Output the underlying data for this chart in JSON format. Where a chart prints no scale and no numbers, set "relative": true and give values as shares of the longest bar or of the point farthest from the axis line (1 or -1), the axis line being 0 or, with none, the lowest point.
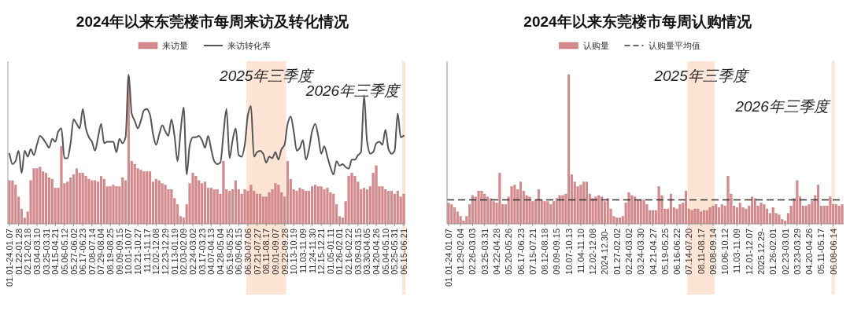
{
  "chart_data": [
    {
      "type": "bar",
      "title": "2024年以来东莞楼市每周来访及转化情况",
      "relative": true,
      "legend": "top",
      "categories": [
        "01.01-24.01.07",
        null,
        null,
        "01.22-01.28",
        null,
        null,
        "02.12-02.18",
        null,
        null,
        "03.04-03.10",
        null,
        null,
        "03.25-03.31",
        null,
        null,
        "04.15-04.21",
        null,
        null,
        "05.06-05.12",
        null,
        null,
        "05.27-06.02",
        null,
        null,
        "06.17-06.23",
        null,
        null,
        "07.08-07.14",
        null,
        null,
        "07.29-08.04",
        null,
        null,
        "08.19-08.25",
        null,
        null,
        "09.09-09.15",
        null,
        null,
        "10.01-10.07",
        null,
        null,
        "10.21-10.27",
        null,
        null,
        "11.11-11.17",
        null,
        null,
        "12.02-12.08",
        null,
        null,
        "12.23-12.29",
        null,
        null,
        "01.13-01.19",
        null,
        null,
        "02.03-02.09",
        null,
        null,
        "02.24-03.02",
        null,
        null,
        "03.17-03.23",
        null,
        null,
        "04.07-04.13",
        null,
        null,
        "04.28-05.04",
        null,
        null,
        "05.19-05.25",
        null,
        null,
        "06.09-06.15",
        null,
        null,
        "06.30-07.06",
        null,
        null,
        "07.21-07.27",
        null,
        null,
        "08.11-08.17",
        null,
        null,
        "09.01-09.07",
        null,
        null,
        "09.22-09.28",
        null,
        null,
        "10.13-10.19",
        null,
        null,
        "11.03-11.09",
        null,
        null,
        "11.24-11.30",
        null,
        null,
        "12.15-12.21",
        null,
        null,
        "01.05-01.11",
        null,
        null,
        "01.26-02.01",
        null,
        null,
        "02.16-02.22",
        null,
        null,
        "03.09-03.15",
        null,
        null,
        "03.30-04.05",
        null,
        null,
        "04.20-04.26",
        null,
        null,
        "05.04-05.10",
        null,
        null,
        "05.25-05.31",
        null,
        null,
        "06.15-06.21"
      ],
      "series": [
        {
          "name": "来访量",
          "color": "#d4898c",
          "values": [
            0.29,
            0.29,
            0.26,
            0.18,
            0.1,
            0.04,
            0.08,
            0.29,
            0.37,
            0.37,
            0.38,
            0.35,
            0.34,
            0.31,
            0.3,
            0.24,
            0.24,
            0.52,
            0.27,
            0.28,
            0.31,
            0.33,
            0.37,
            0.34,
            0.34,
            0.32,
            0.3,
            0.29,
            0.29,
            0.28,
            0.32,
            0.3,
            0.25,
            0.25,
            0.26,
            0.25,
            0.25,
            0.31,
            0.29,
            0.99,
            0.42,
            0.4,
            0.37,
            0.36,
            0.35,
            0.35,
            0.35,
            0.28,
            0.3,
            0.29,
            0.27,
            0.26,
            0.23,
            0.23,
            0.17,
            0.13,
            0.05,
            0.04,
            0.13,
            0.27,
            0.34,
            0.32,
            0.29,
            0.27,
            0.28,
            0.24,
            0.24,
            0.23,
            0.23,
            0.2,
            0.42,
            0.23,
            0.22,
            0.23,
            0.29,
            0.23,
            0.2,
            0.23,
            0.22,
            0.26,
            0.22,
            0.2,
            0.2,
            0.18,
            0.18,
            0.21,
            0.23,
            0.27,
            0.26,
            0.21,
            0.18,
            0.42,
            0.3,
            0.23,
            0.22,
            0.24,
            0.23,
            0.22,
            0.22,
            0.25,
            0.26,
            0.25,
            0.25,
            0.23,
            0.24,
            0.21,
            0.2,
            0.13,
            0.05,
            0.04,
            0.15,
            0.32,
            0.34,
            0.32,
            0.28,
            0.23,
            0.24,
            0.23,
            0.25,
            0.34,
            0.39,
            0.25,
            0.25,
            0.23,
            0.22,
            0.22,
            0.2,
            0.22,
            0.18,
            0.2
          ]
        },
        {
          "name": "来访转化率",
          "type": "line",
          "color": "#555555",
          "values": [
            0.47,
            0.4,
            0.42,
            0.49,
            0.34,
            0.49,
            0.45,
            0.5,
            0.46,
            0.53,
            0.59,
            0.57,
            0.54,
            0.51,
            0.57,
            0.55,
            0.62,
            0.64,
            0.44,
            0.44,
            0.54,
            0.7,
            0.67,
            0.64,
            0.77,
            0.64,
            0.58,
            0.55,
            0.49,
            0.58,
            0.67,
            0.54,
            0.55,
            0.55,
            0.55,
            0.48,
            0.57,
            0.54,
            0.58,
            1,
            0.74,
            0.69,
            0.64,
            0.69,
            0.76,
            0.77,
            0.73,
            0.6,
            0.53,
            0.6,
            0.66,
            0.62,
            0.59,
            0.7,
            0.59,
            0.42,
            0.62,
            0.78,
            0.33,
            0.53,
            0.58,
            0.58,
            0.59,
            0.56,
            0.51,
            0.59,
            0.5,
            0.42,
            0.4,
            0.41,
            0.6,
            0.77,
            0.44,
            0.56,
            0.64,
            0.46,
            0.45,
            0.53,
            0.73,
            0.79,
            0.45,
            0.48,
            0.49,
            0.47,
            0.41,
            0.45,
            0.44,
            0.48,
            0.43,
            0.5,
            0.53,
            0.67,
            0.72,
            0.62,
            0.49,
            0.51,
            0.56,
            0.43,
            0.5,
            0.62,
            0.67,
            0.59,
            0.47,
            0.52,
            0.45,
            0.38,
            0.33,
            0.42,
            0.39,
            0.4,
            0.38,
            0.37,
            0.43,
            0.43,
            0.46,
            0.48,
            0.86,
            0.55,
            0.47,
            0.48,
            0.54,
            0.55,
            0.53,
            0.63,
            0.5,
            0.47,
            0.49,
            0.74,
            0.58,
            0.59
          ]
        }
      ],
      "bands": [
        {
          "axis": "x",
          "from": "06.30-07.06",
          "to": "09.22-09.28",
          "label": "2025年三季度",
          "color": "#fde4d4"
        },
        {
          "axis": "x",
          "from": "06.15-06.21",
          "to": "06.15-06.21",
          "label": "2026年三季度",
          "color": "#fde4d4"
        }
      ]
    },
    {
      "type": "bar",
      "title": "2024年以来东莞楼市每周认购情况",
      "relative": true,
      "legend": "top",
      "categories": [
        "01.01-24.01.07",
        null,
        null,
        null,
        "01.29-02.04",
        null,
        null,
        null,
        "02.26-03.03",
        null,
        null,
        null,
        "03.25-03.31",
        null,
        null,
        null,
        "04.22-04.28",
        null,
        null,
        null,
        "05.20-05.26",
        null,
        null,
        null,
        "06.17-06.23",
        null,
        null,
        null,
        "07.15-07.21",
        null,
        null,
        null,
        "08.12-08.18",
        null,
        null,
        null,
        "09.09-09.15",
        null,
        null,
        null,
        "10.07-10.13",
        null,
        null,
        null,
        "11.04-11.10",
        null,
        null,
        null,
        "12.02-12.08",
        null,
        null,
        null,
        "2024.12.30-",
        null,
        null,
        null,
        "01.27-02.02",
        null,
        null,
        null,
        "02.24-03.02",
        null,
        null,
        null,
        "03.24-03.30",
        null,
        null,
        null,
        "04.21-04.27",
        null,
        null,
        null,
        "05.19-05.25",
        null,
        null,
        null,
        "06.16-06.22",
        null,
        null,
        null,
        "07.14-07.20",
        null,
        null,
        null,
        "08.11-08.17",
        null,
        null,
        null,
        "09.08-09.14",
        null,
        null,
        null,
        "10.06-10.12",
        null,
        null,
        null,
        "11.03-11.09",
        null,
        null,
        null,
        "12.01-12.07",
        null,
        null,
        null,
        "2025.12.29-",
        null,
        null,
        null,
        "01.26-02.01",
        null,
        null,
        null,
        "02.23-03.01",
        null,
        null,
        null,
        "03.23-03.29",
        null,
        null,
        null,
        "04.20-04.26",
        null,
        null,
        null,
        "05.11-05.17",
        null,
        null,
        null,
        "06.08-06.14",
        null,
        null,
        null
      ],
      "series": [
        {
          "name": "认购量",
          "color": "#d4898c",
          "values": [
            0.14,
            0.13,
            0.11,
            0.08,
            0.05,
            0.02,
            0.05,
            0.13,
            0.19,
            0.18,
            0.22,
            0.22,
            0.2,
            0.18,
            0.17,
            0.15,
            0.14,
            0.34,
            0.13,
            0.13,
            0.18,
            0.25,
            0.26,
            0.23,
            0.28,
            0.22,
            0.19,
            0.18,
            0.15,
            0.16,
            0.23,
            0.16,
            0.15,
            0.15,
            0.13,
            0.15,
            0.17,
            0.19,
            0.19,
            0.2,
            1,
            0.33,
            0.28,
            0.25,
            0.26,
            0.28,
            0.28,
            0.2,
            0.17,
            0.18,
            0.19,
            0.18,
            0.15,
            0.17,
            0.1,
            0.05,
            0.04,
            0.04,
            0.05,
            0.14,
            0.21,
            0.19,
            0.18,
            0.16,
            0.16,
            0.16,
            0.13,
            0.09,
            0.09,
            0.09,
            0.25,
            0.19,
            0.1,
            0.1,
            0.2,
            0.11,
            0.1,
            0.13,
            0.14,
            0.22,
            0.1,
            0.09,
            0.1,
            0.1,
            0.08,
            0.09,
            0.09,
            0.11,
            0.12,
            0.13,
            0.11,
            0.13,
            0.12,
            0.32,
            0.2,
            0.12,
            0.11,
            0.14,
            0.11,
            0.1,
            0.12,
            0.18,
            0.17,
            0.12,
            0.14,
            0.13,
            0.1,
            0.07,
            0.11,
            0.07,
            0.06,
            0.03,
            0.02,
            0.07,
            0.12,
            0.17,
            0.29,
            0.18,
            0.12,
            0.12,
            0.13,
            0.15,
            0.19,
            0.26,
            0.12,
            0.12,
            0.12,
            0.18,
            0.13,
            0.13,
            0.12,
            0.13
          ]
        }
      ],
      "ref_lines": [
        {
          "axis": "y",
          "value": 0.16,
          "label": "认购量平均值",
          "line_style": "dashed",
          "color": "#333333"
        }
      ],
      "bands": [
        {
          "axis": "x",
          "from": "07.14-07.20",
          "to": "09.08-09.14",
          "label": "2025年三季度",
          "color": "#fde4d4"
        },
        {
          "axis": "x",
          "from": "06.08-06.14",
          "to": "06.08-06.14",
          "label": "2026年三季度",
          "color": "#fde4d4"
        }
      ]
    }
  ]
}
